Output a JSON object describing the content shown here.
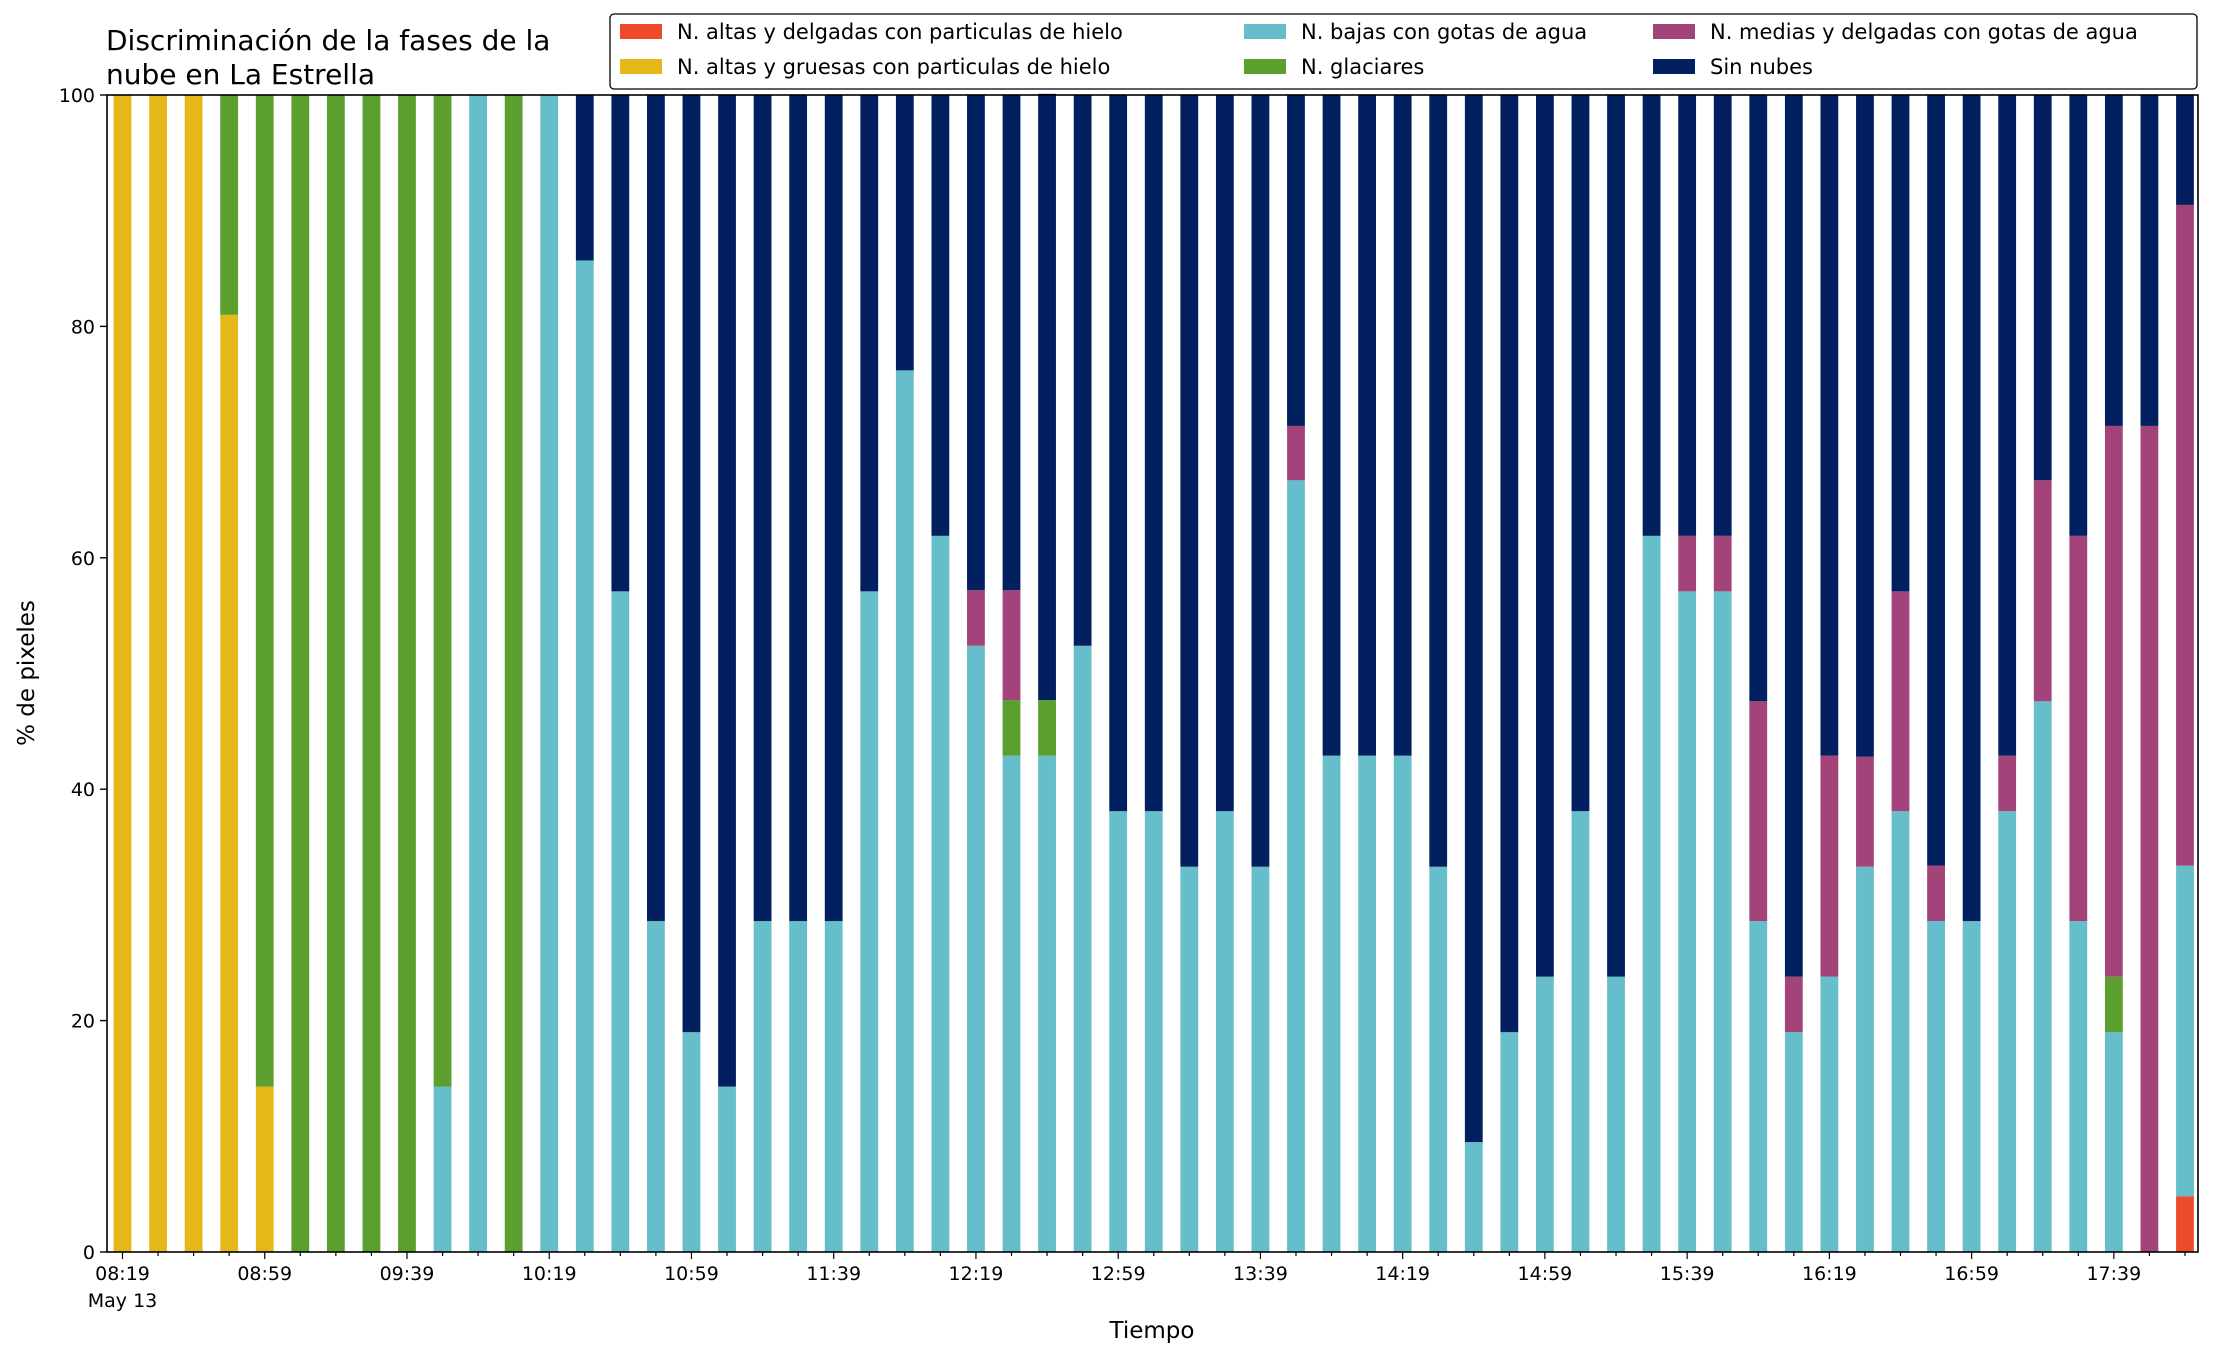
{
  "chart_data": {
    "type": "bar",
    "stacked": true,
    "title_lines": [
      "Discriminación de la fases de la",
      "nube en La Estrella"
    ],
    "xlabel": "Tiempo",
    "ylabel": "% de pixeles",
    "ylim": [
      0,
      100
    ],
    "yticks": [
      0,
      20,
      40,
      60,
      80,
      100
    ],
    "grid": false,
    "legend_position": "top-right",
    "x_start": "08:19",
    "x_interval_minutes": 10,
    "xtick_labels": [
      "08:19",
      "08:59",
      "09:39",
      "10:19",
      "10:59",
      "11:39",
      "12:19",
      "12:59",
      "13:39",
      "14:19",
      "14:59",
      "15:39",
      "16:19",
      "16:59",
      "17:39"
    ],
    "xtick_date_label": "May 13",
    "series": [
      {
        "name": "N. altas y delgadas con particulas de hielo",
        "color": "#ee4b2b",
        "values": [
          0,
          0,
          0,
          0,
          0,
          0,
          0,
          0,
          0,
          0,
          0,
          0,
          0,
          0,
          0,
          0,
          0,
          0,
          0,
          0,
          0,
          0,
          0,
          0,
          0,
          0,
          0,
          0,
          0,
          0,
          0,
          0,
          0,
          0,
          0,
          0,
          0,
          0,
          0,
          0,
          0,
          0,
          0,
          0,
          0,
          0,
          0,
          0,
          0,
          0,
          0,
          0,
          0,
          0,
          0,
          0,
          0,
          0,
          4.8
        ]
      },
      {
        "name": "N. altas y gruesas con particulas de hielo",
        "color": "#e5b719",
        "values": [
          100,
          100,
          100,
          81,
          14.3,
          0,
          0,
          0,
          0,
          0,
          0,
          0,
          0,
          0,
          0,
          0,
          0,
          0,
          0,
          0,
          0,
          0,
          0,
          0,
          0,
          0,
          0,
          0,
          0,
          0,
          0,
          0,
          0,
          0,
          0,
          0,
          0,
          0,
          0,
          0,
          0,
          0,
          0,
          0,
          0,
          0,
          0,
          0,
          0,
          0,
          0,
          0,
          0,
          0,
          0,
          0,
          0,
          0,
          0
        ]
      },
      {
        "name": "N. bajas con gotas de agua",
        "color": "#65bec9",
        "values": [
          0,
          0,
          0,
          0,
          0,
          0,
          0,
          0,
          0,
          14.3,
          100,
          0,
          100,
          85.7,
          57.1,
          28.6,
          19,
          14.3,
          28.6,
          28.6,
          28.6,
          57.1,
          76.2,
          61.9,
          52.4,
          42.9,
          42.9,
          52.4,
          38.1,
          38.1,
          33.3,
          38.1,
          33.3,
          66.7,
          42.9,
          42.9,
          42.9,
          33.3,
          9.5,
          19,
          23.8,
          38.1,
          23.8,
          61.9,
          57.1,
          57.1,
          28.6,
          19,
          23.8,
          33.3,
          38.1,
          28.6,
          28.6,
          38.1,
          47.6,
          28.6,
          19,
          0,
          28.6
        ]
      },
      {
        "name": "N. glaciares",
        "color": "#5b9f2e",
        "values": [
          0,
          0,
          0,
          19,
          85.7,
          100,
          100,
          100,
          100,
          85.7,
          0,
          100,
          0,
          0,
          0,
          0,
          0,
          0,
          0,
          0,
          0,
          0,
          0,
          0,
          0,
          4.8,
          4.8,
          0,
          0,
          0,
          0,
          0,
          0,
          0,
          0,
          0,
          0,
          0,
          0,
          0,
          0,
          0,
          0,
          0,
          0,
          0,
          0,
          0,
          0,
          0,
          0,
          0,
          0,
          0,
          0,
          0,
          4.8,
          0,
          0
        ]
      },
      {
        "name": "N. medias y delgadas con gotas de agua",
        "color": "#a2437a",
        "values": [
          0,
          0,
          0,
          0,
          0,
          0,
          0,
          0,
          0,
          0,
          0,
          0,
          0,
          0,
          0,
          0,
          0,
          0,
          0,
          0,
          0,
          0,
          0,
          0,
          4.8,
          9.5,
          0,
          0,
          0,
          0,
          0,
          0,
          0,
          4.7,
          0,
          0,
          0,
          0,
          0,
          0,
          0,
          0,
          0,
          0,
          4.8,
          4.8,
          19,
          4.8,
          19.1,
          9.5,
          19,
          4.8,
          0,
          4.8,
          19.1,
          33.3,
          47.6,
          71.4,
          57.1
        ]
      },
      {
        "name": "Sin nubes",
        "color": "#021f5f",
        "values": [
          0,
          0,
          0,
          0,
          0,
          0,
          0,
          0,
          0,
          0,
          0,
          0,
          0,
          14.3,
          42.9,
          71.4,
          81,
          85.7,
          71.4,
          71.4,
          71.4,
          42.9,
          23.8,
          38.1,
          42.8,
          42.8,
          52.4,
          47.6,
          61.9,
          61.9,
          66.7,
          61.9,
          66.7,
          28.6,
          57.1,
          57.1,
          57.1,
          66.7,
          90.5,
          81,
          76.2,
          61.9,
          76.2,
          38.1,
          38.1,
          38.1,
          52.4,
          76.2,
          57.1,
          57.2,
          42.9,
          66.6,
          71.4,
          57.1,
          33.3,
          38.1,
          28.6,
          28.6,
          9.5
        ]
      }
    ]
  }
}
